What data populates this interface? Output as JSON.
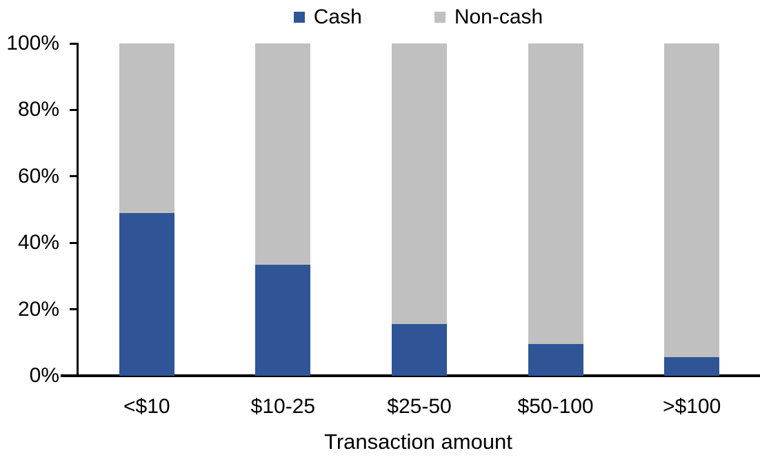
{
  "chart_data": {
    "type": "bar",
    "stacked": true,
    "categories": [
      "<$10",
      "$10-25",
      "$25-50",
      "$50-100",
      ">$100"
    ],
    "series": [
      {
        "name": "Cash",
        "color": "#2F5596",
        "values": [
          49,
          33.5,
          15.5,
          9.5,
          5.5
        ]
      },
      {
        "name": "Non-cash",
        "color": "#C0C0C0",
        "values": [
          51,
          66.5,
          84.5,
          90.5,
          94.5
        ]
      }
    ],
    "xlabel": "Transaction amount",
    "ylabel": "",
    "ylim": [
      0,
      100
    ],
    "yticks": [
      "0%",
      "20%",
      "40%",
      "60%",
      "80%",
      "100%"
    ],
    "grid": false,
    "legend_position": "top",
    "colors": {
      "axis": "#000000",
      "background": "#FFFFFF"
    }
  }
}
